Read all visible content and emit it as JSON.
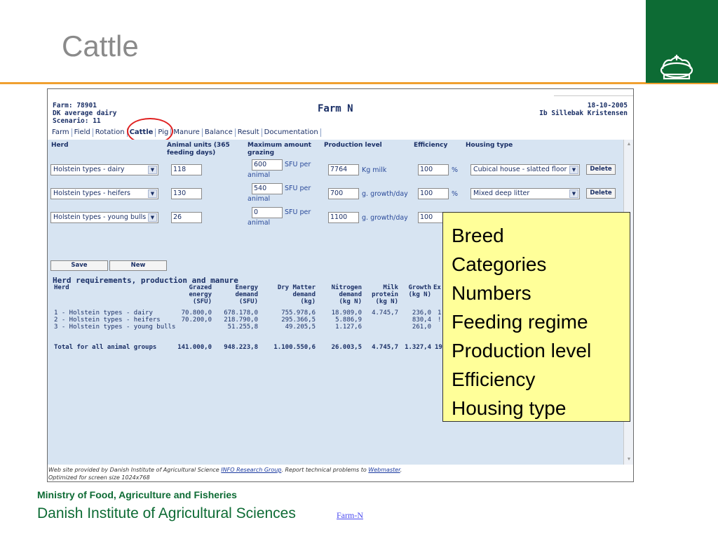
{
  "slide": {
    "title": "Cattle",
    "footer_ministry": "Ministry of Food, Agriculture and Fisheries",
    "footer_institute": "Danish Institute of Agricultural Sciences",
    "footer_link": "Farm-N",
    "accent_color": "#f0a030",
    "brand_color": "#0d6b34",
    "logo_icon": "crown-icon"
  },
  "app": {
    "farm_line": "Farm: 78901",
    "farm_type": "DK average dairy",
    "scenario": "Scenario: 11",
    "title": "Farm N",
    "date": "18-10-2005",
    "user": "Ib Sillebak Kristensen"
  },
  "tabs": [
    "Farm",
    "Field",
    "Rotation",
    "Cattle",
    "Pig",
    "Manure",
    "Balance",
    "Result",
    "Documentation"
  ],
  "herd_form": {
    "col_herd": "Herd",
    "col_units_1": "Animal units (365",
    "col_units_2": "feeding days)",
    "col_grazing_1": "Maximum amount",
    "col_grazing_2": "grazing",
    "col_production": "Production level",
    "col_efficiency": "Efficiency",
    "col_housing": "Housing type",
    "sfu_label": "SFU per",
    "animal_label": "animal",
    "percent": "%",
    "rows": [
      {
        "breed": "Holstein types - dairy",
        "units": "118",
        "grazing": "600",
        "production": "7764",
        "prod_unit": "Kg milk",
        "efficiency": "100",
        "housing": "Cubical house - slatted floor",
        "delete": "Delete"
      },
      {
        "breed": "Holstein types - heifers",
        "units": "130",
        "grazing": "540",
        "production": "700",
        "prod_unit": "g. growth/day",
        "efficiency": "100",
        "housing": "Mixed deep litter",
        "delete": "Delete"
      },
      {
        "breed": "Holstein types - young bulls",
        "units": "26",
        "grazing": "0",
        "production": "1100",
        "prod_unit": "g. growth/day",
        "efficiency": "100",
        "housing": "",
        "delete": ""
      }
    ],
    "save": "Save",
    "new": "New"
  },
  "requirements": {
    "title": "Herd requirements, production and manure",
    "headers": {
      "herd": "Herd",
      "grazed": [
        "Grazed",
        "energy",
        "(SFU)"
      ],
      "energy": [
        "Energy",
        "demand",
        "(SFU)"
      ],
      "dry": [
        "Dry Matter",
        "demand",
        "(kg)"
      ],
      "nitrogen": [
        "Nitrogen",
        "demand",
        "(kg N)"
      ],
      "milk": [
        "Milk",
        "protein",
        "(kg N)"
      ],
      "growth": [
        "Growth",
        "(kg N)"
      ],
      "ex": "Ex"
    },
    "rows": [
      {
        "herd": "1 - Holstein types - dairy",
        "grazed": "70.800,0",
        "energy": "678.178,0",
        "dry": "755.978,6",
        "nitrogen": "18.989,0",
        "milk": "4.745,7",
        "growth": "236,0",
        "ex": "1:"
      },
      {
        "herd": "2 - Holstein types - heifers",
        "grazed": "70.200,0",
        "energy": "218.790,0",
        "dry": "295.366,5",
        "nitrogen": "5.886,9",
        "milk": "",
        "growth": "830,4",
        "ex": "!"
      },
      {
        "herd": "3 - Holstein types - young bulls",
        "grazed": "",
        "energy": "51.255,8",
        "dry": "49.205,5",
        "nitrogen": "1.127,6",
        "milk": "",
        "growth": "261,0",
        "ex": ""
      }
    ],
    "totals": {
      "label": "Total for all animal groups",
      "grazed": "141.000,0",
      "energy": "948.223,8",
      "dry": "1.100.550,6",
      "nitrogen": "26.003,5",
      "milk": "4.745,7",
      "growth": "1.327,4",
      "ex": "19"
    }
  },
  "footer_info": {
    "line1_a": "Web site provided by Danish Institute of Agricultural Science",
    "line1_link1": "INFO Research Group",
    "line1_b": ". Report technical problems to",
    "line1_link2": "Webmaster",
    "line1_c": ".",
    "line2": "Optimized for screen size 1024x768"
  },
  "callout": {
    "items": [
      "Breed",
      "Categories",
      "Numbers",
      "Feeding regime",
      "Production level",
      "Efficiency",
      "Housing type"
    ]
  }
}
